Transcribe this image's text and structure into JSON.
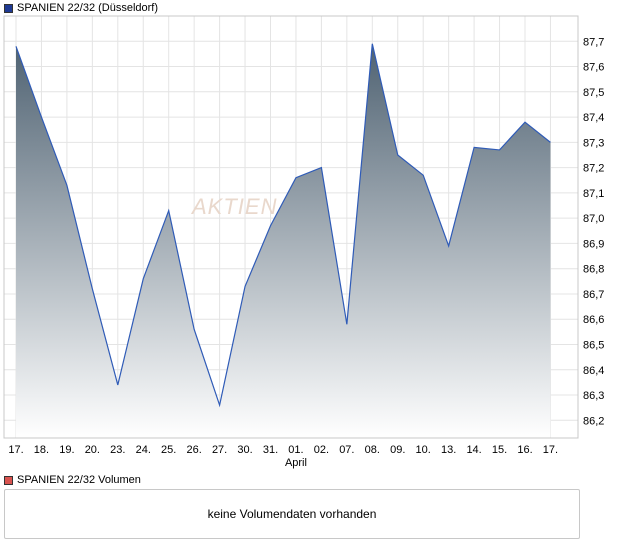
{
  "legend": {
    "price_series": "SPANIEN 22/32 (Düsseldorf)",
    "price_color": "#1f3a93",
    "volume_series": "SPANIEN 22/32 Volumen",
    "volume_color": "#d9534f"
  },
  "watermark": "AKTIEN",
  "volume_panel": {
    "message": "keine Volumendaten vorhanden"
  },
  "chart_data": {
    "type": "area",
    "x": [
      "17.",
      "18.",
      "19.",
      "20.",
      "23.",
      "24.",
      "25.",
      "26.",
      "27.",
      "30.",
      "31.",
      "01.",
      "02.",
      "07.",
      "08.",
      "09.",
      "10.",
      "13.",
      "14.",
      "15.",
      "16.",
      "17."
    ],
    "month_label": {
      "text": "April",
      "at_index": 11
    },
    "series": [
      {
        "name": "SPANIEN 22/32 (Düsseldorf)",
        "values": [
          87.68,
          87.4,
          87.13,
          86.72,
          86.34,
          86.76,
          87.03,
          86.56,
          86.26,
          86.73,
          86.97,
          87.16,
          87.2,
          86.58,
          87.69,
          87.25,
          87.17,
          86.89,
          87.28,
          87.27,
          87.38,
          87.3
        ]
      }
    ],
    "yticks": [
      86.2,
      86.3,
      86.4,
      86.5,
      86.6,
      86.7,
      86.8,
      86.9,
      87.0,
      87.1,
      87.2,
      87.3,
      87.4,
      87.5,
      87.6,
      87.7
    ],
    "ytick_labels": [
      "86,2",
      "86,3",
      "86,4",
      "86,5",
      "86,6",
      "86,7",
      "86,8",
      "86,9",
      "87,0",
      "87,1",
      "87,2",
      "87,3",
      "87,4",
      "87,5",
      "87,6",
      "87,7"
    ],
    "ylim": [
      86.13,
      87.8
    ],
    "grid": true,
    "line_color": "#2f5bb7",
    "fill_top_color": "#4f6272",
    "fill_bottom_color": "#ffffff"
  }
}
